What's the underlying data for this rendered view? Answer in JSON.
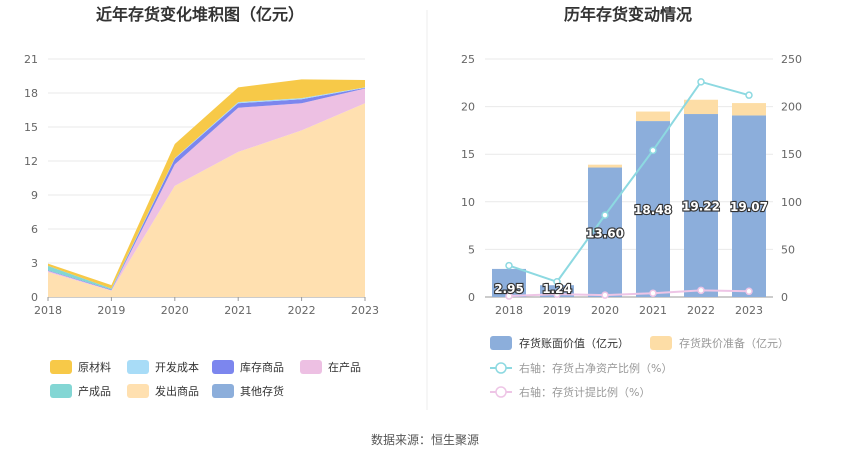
{
  "footer": {
    "source": "数据来源：恒生聚源"
  },
  "colors": {
    "raw": "#F7C948",
    "dev_cost": "#A8DCF7",
    "stock_goods": "#7C86EE",
    "wip": "#EDC0E3",
    "finished": "#83D6D4",
    "shipped": "#FFE0B0",
    "other": "#8CAEDB",
    "bar_book": "#8CAEDB",
    "bar_provision": "#FDDDA6",
    "line_ratio": "#8DD9E1",
    "line_provision": "#EEC5E6"
  },
  "chart_data": [
    {
      "type": "area",
      "stacked": true,
      "title": "近年存货变化堆积图（亿元）",
      "x": [
        "2018",
        "2019",
        "2020",
        "2021",
        "2022",
        "2023"
      ],
      "ylim": [
        0,
        21
      ],
      "yticks": [
        "0",
        "3",
        "6",
        "9",
        "12",
        "15",
        "18",
        "21"
      ],
      "legend_position": "bottom",
      "series": [
        {
          "name": "发出商品",
          "color_key": "shipped",
          "values": [
            2.2,
            0.55,
            9.8,
            12.8,
            14.7,
            17.1
          ]
        },
        {
          "name": "在产品",
          "color_key": "wip",
          "values": [
            0.1,
            0.05,
            1.9,
            3.9,
            2.4,
            1.3
          ]
        },
        {
          "name": "库存商品",
          "color_key": "stock_goods",
          "values": [
            0.05,
            0.05,
            0.5,
            0.4,
            0.35,
            0.05
          ]
        },
        {
          "name": "开发成本",
          "color_key": "dev_cost",
          "values": [
            0.0,
            0.0,
            0.05,
            0.1,
            0.1,
            0.05
          ]
        },
        {
          "name": "产成品",
          "color_key": "finished",
          "values": [
            0.4,
            0.1,
            0.0,
            0.0,
            0.0,
            0.0
          ]
        },
        {
          "name": "其他存货",
          "color_key": "other",
          "values": [
            0.0,
            0.0,
            0.0,
            0.0,
            0.0,
            0.0
          ]
        },
        {
          "name": "原材料",
          "color_key": "raw",
          "values": [
            0.2,
            0.3,
            1.25,
            1.3,
            1.65,
            0.65
          ]
        }
      ],
      "legend_order": [
        "原材料",
        "开发成本",
        "库存商品",
        "在产品",
        "产成品",
        "发出商品",
        "其他存货"
      ]
    },
    {
      "type": "bar",
      "stacked": true,
      "title": "历年存货变动情况",
      "categories": [
        "2018",
        "2019",
        "2020",
        "2021",
        "2022",
        "2023"
      ],
      "ylim": [
        0,
        25
      ],
      "yticks": [
        "0",
        "5",
        "10",
        "15",
        "20",
        "25"
      ],
      "y2lim": [
        0,
        250
      ],
      "y2ticks": [
        "0",
        "50",
        "100",
        "150",
        "200",
        "250"
      ],
      "legend_position": "bottom",
      "series": [
        {
          "name": "存货账面价值（亿元）",
          "color_key": "bar_book",
          "values": [
            2.95,
            1.24,
            13.6,
            18.48,
            19.22,
            19.07
          ],
          "labels": [
            "2.95",
            "1.24",
            "13.60",
            "18.48",
            "19.22",
            "19.07"
          ]
        },
        {
          "name": "存货跌价准备（亿元）",
          "color_key": "bar_provision",
          "values": [
            0.0,
            0.0,
            0.3,
            1.0,
            1.5,
            1.3
          ]
        }
      ],
      "lines": [
        {
          "name": "右轴：存货占净资产比例（%）",
          "axis": "right",
          "color_key": "line_ratio",
          "values": [
            33,
            16,
            86,
            154,
            226,
            212
          ]
        },
        {
          "name": "右轴：存货计提比例（%）",
          "axis": "right",
          "color_key": "line_provision",
          "values": [
            1,
            3,
            2,
            4,
            7,
            6
          ]
        }
      ]
    }
  ]
}
